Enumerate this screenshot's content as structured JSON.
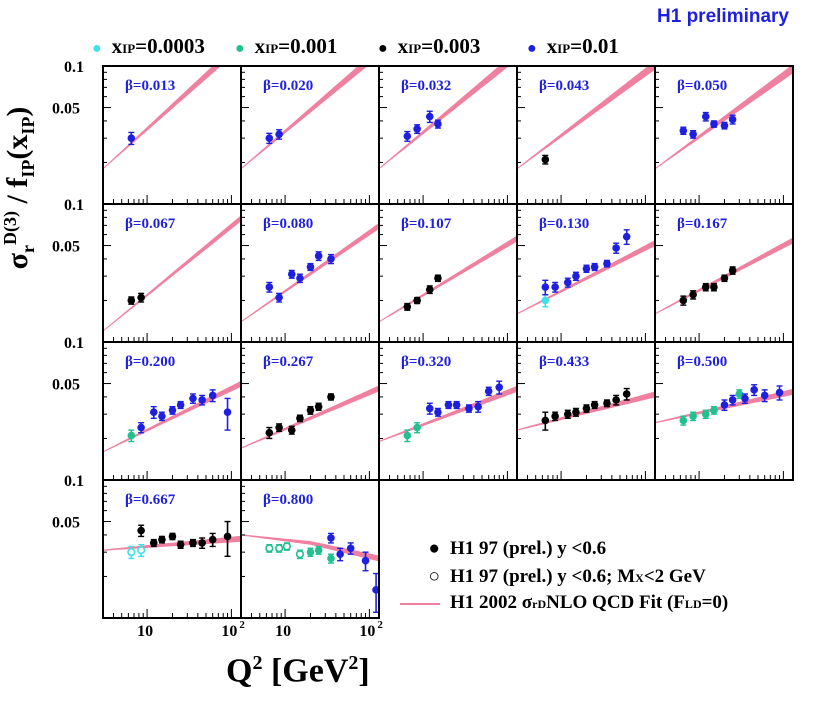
{
  "header": {
    "preliminary": "H1 preliminary"
  },
  "legend_top": [
    {
      "prefix": "x",
      "sub": "IP",
      "value": "=0.0003",
      "color": "#40e0e8"
    },
    {
      "prefix": "x",
      "sub": "IP",
      "value": "=0.001",
      "color": "#20c090"
    },
    {
      "prefix": "x",
      "sub": "IP",
      "value": "=0.003",
      "color": "#000000"
    },
    {
      "prefix": "x",
      "sub": "IP",
      "value": "=0.01",
      "color": "#1f1fe0"
    }
  ],
  "axis": {
    "ylabel_sigma": "σ",
    "ylabel_sup": "D(3)",
    "ylabel_sub": "r",
    "ylabel_rest": " / f",
    "ylabel_sub2": "IP",
    "ylabel_paren": "(x",
    "ylabel_sub3": "IP",
    "ylabel_close": ")",
    "xlabel_q": "Q",
    "xlabel_sup": "2",
    "xlabel_unit": " [GeV",
    "xlabel_unit_sup": "2",
    "xlabel_close": "]",
    "ytick_top": "0.1",
    "ytick_mid": "0.05",
    "xtick_10": "10",
    "xtick_100": "10",
    "xtick_100_sup": "2"
  },
  "legend_bottom": {
    "filled": "H1 97 (prel.) y <0.6",
    "open": "H1 97 (prel.) y <0.6; M",
    "open_sub": "X",
    "open_tail": "<2 GeV",
    "fit_a": "H1 2002  σ",
    "fit_sup": "D",
    "fit_sub": "r",
    "fit_b": "  NLO QCD Fit (F",
    "fit_sup2": "D",
    "fit_sub2": "L",
    "fit_c": "=0)"
  },
  "chart_data": {
    "type": "scatter",
    "title": "H1 preliminary",
    "xlabel": "Q^2 [GeV^2]",
    "ylabel": "sigma_r^D(3) / f_IP(x_IP)",
    "xscale": "log",
    "xlim": [
      3,
      130
    ],
    "ylim": [
      0.01,
      0.1
    ],
    "colors": {
      "0.0003": "#40e0e8",
      "0.001": "#20c090",
      "0.003": "#000000",
      "0.01": "#1f1fe0",
      "fit": "#f080a0"
    },
    "panels": [
      {
        "beta": "β=0.013",
        "fit": [
          [
            3,
            0.018
          ],
          [
            100,
            0.125
          ]
        ],
        "points": [
          {
            "q2": 6.5,
            "y": 0.03,
            "err": 0.003,
            "xip": "0.01"
          }
        ]
      },
      {
        "beta": "β=0.020",
        "fit": [
          [
            3,
            0.018
          ],
          [
            100,
            0.11
          ]
        ],
        "points": [
          {
            "q2": 6.5,
            "y": 0.03,
            "err": 0.0025,
            "xip": "0.01"
          },
          {
            "q2": 8.5,
            "y": 0.032,
            "err": 0.0025,
            "xip": "0.01"
          }
        ]
      },
      {
        "beta": "β=0.032",
        "fit": [
          [
            3,
            0.018
          ],
          [
            100,
            0.105
          ]
        ],
        "points": [
          {
            "q2": 6.5,
            "y": 0.031,
            "err": 0.0025,
            "xip": "0.01"
          },
          {
            "q2": 8.5,
            "y": 0.035,
            "err": 0.0025,
            "xip": "0.01"
          },
          {
            "q2": 12,
            "y": 0.043,
            "err": 0.004,
            "xip": "0.01"
          },
          {
            "q2": 15,
            "y": 0.038,
            "err": 0.0025,
            "xip": "0.01"
          }
        ]
      },
      {
        "beta": "β=0.043",
        "fit": [
          [
            3,
            0.018
          ],
          [
            100,
            0.09
          ]
        ],
        "points": [
          {
            "q2": 6.5,
            "y": 0.021,
            "err": 0.0015,
            "xip": "0.003"
          }
        ]
      },
      {
        "beta": "β=0.050",
        "fit": [
          [
            3,
            0.018
          ],
          [
            100,
            0.085
          ]
        ],
        "points": [
          {
            "q2": 6.5,
            "y": 0.034,
            "err": 0.002,
            "xip": "0.01"
          },
          {
            "q2": 8.5,
            "y": 0.032,
            "err": 0.002,
            "xip": "0.01"
          },
          {
            "q2": 12,
            "y": 0.043,
            "err": 0.003,
            "xip": "0.01"
          },
          {
            "q2": 15,
            "y": 0.038,
            "err": 0.002,
            "xip": "0.01"
          },
          {
            "q2": 20,
            "y": 0.037,
            "err": 0.002,
            "xip": "0.01"
          },
          {
            "q2": 25,
            "y": 0.041,
            "err": 0.003,
            "xip": "0.01"
          }
        ]
      },
      {
        "beta": "β=0.067",
        "fit": [
          [
            3,
            0.012
          ],
          [
            100,
            0.069
          ]
        ],
        "points": [
          {
            "q2": 6.5,
            "y": 0.02,
            "err": 0.0012,
            "xip": "0.003"
          },
          {
            "q2": 8.5,
            "y": 0.021,
            "err": 0.0015,
            "xip": "0.003"
          }
        ]
      },
      {
        "beta": "β=0.080",
        "fit": [
          [
            3,
            0.014
          ],
          [
            100,
            0.062
          ]
        ],
        "points": [
          {
            "q2": 6.5,
            "y": 0.025,
            "err": 0.002,
            "xip": "0.01"
          },
          {
            "q2": 8.5,
            "y": 0.021,
            "err": 0.0015,
            "xip": "0.01"
          },
          {
            "q2": 12,
            "y": 0.031,
            "err": 0.002,
            "xip": "0.01"
          },
          {
            "q2": 15,
            "y": 0.029,
            "err": 0.002,
            "xip": "0.01"
          },
          {
            "q2": 20,
            "y": 0.035,
            "err": 0.002,
            "xip": "0.01"
          },
          {
            "q2": 25,
            "y": 0.042,
            "err": 0.003,
            "xip": "0.01"
          },
          {
            "q2": 35,
            "y": 0.04,
            "err": 0.003,
            "xip": "0.01"
          }
        ]
      },
      {
        "beta": "β=0.107",
        "fit": [
          [
            3,
            0.014
          ],
          [
            100,
            0.051
          ]
        ],
        "points": [
          {
            "q2": 6.5,
            "y": 0.018,
            "err": 0.001,
            "xip": "0.003"
          },
          {
            "q2": 8.5,
            "y": 0.02,
            "err": 0.001,
            "xip": "0.003"
          },
          {
            "q2": 12,
            "y": 0.024,
            "err": 0.0015,
            "xip": "0.003"
          },
          {
            "q2": 15,
            "y": 0.029,
            "err": 0.0015,
            "xip": "0.003"
          }
        ]
      },
      {
        "beta": "β=0.130",
        "fit": [
          [
            3,
            0.016
          ],
          [
            100,
            0.048
          ]
        ],
        "points": [
          {
            "q2": 6.5,
            "y": 0.02,
            "err": 0.002,
            "xip": "0.0003"
          },
          {
            "q2": 6.5,
            "y": 0.025,
            "err": 0.003,
            "xip": "0.01"
          },
          {
            "q2": 8.5,
            "y": 0.025,
            "err": 0.002,
            "xip": "0.01"
          },
          {
            "q2": 12,
            "y": 0.027,
            "err": 0.002,
            "xip": "0.01"
          },
          {
            "q2": 15,
            "y": 0.03,
            "err": 0.002,
            "xip": "0.01"
          },
          {
            "q2": 20,
            "y": 0.034,
            "err": 0.002,
            "xip": "0.01"
          },
          {
            "q2": 25,
            "y": 0.035,
            "err": 0.002,
            "xip": "0.01"
          },
          {
            "q2": 35,
            "y": 0.037,
            "err": 0.002,
            "xip": "0.01"
          },
          {
            "q2": 45,
            "y": 0.048,
            "err": 0.004,
            "xip": "0.01"
          },
          {
            "q2": 60,
            "y": 0.058,
            "err": 0.007,
            "xip": "0.01"
          }
        ]
      },
      {
        "beta": "β=0.167",
        "fit": [
          [
            3,
            0.016
          ],
          [
            100,
            0.05
          ]
        ],
        "points": [
          {
            "q2": 6.5,
            "y": 0.02,
            "err": 0.0015,
            "xip": "0.003"
          },
          {
            "q2": 8.5,
            "y": 0.022,
            "err": 0.0015,
            "xip": "0.003"
          },
          {
            "q2": 12,
            "y": 0.025,
            "err": 0.0015,
            "xip": "0.003"
          },
          {
            "q2": 15,
            "y": 0.025,
            "err": 0.0015,
            "xip": "0.003"
          },
          {
            "q2": 20,
            "y": 0.029,
            "err": 0.0015,
            "xip": "0.003"
          },
          {
            "q2": 25,
            "y": 0.033,
            "err": 0.002,
            "xip": "0.003"
          }
        ]
      },
      {
        "beta": "β=0.200",
        "fit": [
          [
            3,
            0.016
          ],
          [
            100,
            0.046
          ]
        ],
        "points": [
          {
            "q2": 6.5,
            "y": 0.021,
            "err": 0.002,
            "xip": "0.001"
          },
          {
            "q2": 8.5,
            "y": 0.024,
            "err": 0.002,
            "xip": "0.01"
          },
          {
            "q2": 12,
            "y": 0.031,
            "err": 0.003,
            "xip": "0.01"
          },
          {
            "q2": 15,
            "y": 0.029,
            "err": 0.002,
            "xip": "0.01"
          },
          {
            "q2": 20,
            "y": 0.032,
            "err": 0.002,
            "xip": "0.01"
          },
          {
            "q2": 25,
            "y": 0.035,
            "err": 0.002,
            "xip": "0.01"
          },
          {
            "q2": 35,
            "y": 0.039,
            "err": 0.003,
            "xip": "0.01"
          },
          {
            "q2": 45,
            "y": 0.038,
            "err": 0.003,
            "xip": "0.01"
          },
          {
            "q2": 60,
            "y": 0.041,
            "err": 0.004,
            "xip": "0.01"
          },
          {
            "q2": 90,
            "y": 0.031,
            "err": 0.008,
            "xip": "0.01"
          }
        ]
      },
      {
        "beta": "β=0.267",
        "fit": [
          [
            3,
            0.017
          ],
          [
            100,
            0.043
          ]
        ],
        "points": [
          {
            "q2": 6.5,
            "y": 0.022,
            "err": 0.002,
            "xip": "0.003"
          },
          {
            "q2": 8.5,
            "y": 0.024,
            "err": 0.0015,
            "xip": "0.003"
          },
          {
            "q2": 12,
            "y": 0.023,
            "err": 0.0015,
            "xip": "0.003"
          },
          {
            "q2": 15,
            "y": 0.028,
            "err": 0.0015,
            "xip": "0.003"
          },
          {
            "q2": 20,
            "y": 0.032,
            "err": 0.002,
            "xip": "0.003"
          },
          {
            "q2": 25,
            "y": 0.034,
            "err": 0.002,
            "xip": "0.003"
          },
          {
            "q2": 35,
            "y": 0.04,
            "err": 0.002,
            "xip": "0.003"
          }
        ]
      },
      {
        "beta": "β=0.320",
        "fit": [
          [
            3,
            0.019
          ],
          [
            100,
            0.043
          ]
        ],
        "points": [
          {
            "q2": 6.5,
            "y": 0.021,
            "err": 0.002,
            "xip": "0.001"
          },
          {
            "q2": 8.5,
            "y": 0.024,
            "err": 0.002,
            "xip": "0.001"
          },
          {
            "q2": 12,
            "y": 0.033,
            "err": 0.003,
            "xip": "0.01"
          },
          {
            "q2": 15,
            "y": 0.031,
            "err": 0.002,
            "xip": "0.01"
          },
          {
            "q2": 20,
            "y": 0.035,
            "err": 0.002,
            "xip": "0.01"
          },
          {
            "q2": 25,
            "y": 0.035,
            "err": 0.002,
            "xip": "0.01"
          },
          {
            "q2": 35,
            "y": 0.033,
            "err": 0.002,
            "xip": "0.01"
          },
          {
            "q2": 45,
            "y": 0.034,
            "err": 0.003,
            "xip": "0.01"
          },
          {
            "q2": 60,
            "y": 0.044,
            "err": 0.003,
            "xip": "0.01"
          },
          {
            "q2": 80,
            "y": 0.047,
            "err": 0.005,
            "xip": "0.01"
          }
        ]
      },
      {
        "beta": "β=0.433",
        "fit": [
          [
            3,
            0.023
          ],
          [
            100,
            0.04
          ]
        ],
        "points": [
          {
            "q2": 6.5,
            "y": 0.027,
            "err": 0.004,
            "xip": "0.003"
          },
          {
            "q2": 8.5,
            "y": 0.029,
            "err": 0.002,
            "xip": "0.003"
          },
          {
            "q2": 12,
            "y": 0.03,
            "err": 0.002,
            "xip": "0.003"
          },
          {
            "q2": 15,
            "y": 0.031,
            "err": 0.002,
            "xip": "0.003"
          },
          {
            "q2": 20,
            "y": 0.033,
            "err": 0.002,
            "xip": "0.003"
          },
          {
            "q2": 25,
            "y": 0.035,
            "err": 0.002,
            "xip": "0.003"
          },
          {
            "q2": 35,
            "y": 0.036,
            "err": 0.002,
            "xip": "0.003"
          },
          {
            "q2": 45,
            "y": 0.038,
            "err": 0.003,
            "xip": "0.003"
          },
          {
            "q2": 60,
            "y": 0.042,
            "err": 0.004,
            "xip": "0.003"
          }
        ]
      },
      {
        "beta": "β=0.500",
        "fit": [
          [
            3,
            0.026
          ],
          [
            100,
            0.042
          ]
        ],
        "points": [
          {
            "q2": 6.5,
            "y": 0.027,
            "err": 0.002,
            "xip": "0.001"
          },
          {
            "q2": 8.5,
            "y": 0.029,
            "err": 0.002,
            "xip": "0.001"
          },
          {
            "q2": 12,
            "y": 0.03,
            "err": 0.002,
            "xip": "0.001"
          },
          {
            "q2": 15,
            "y": 0.032,
            "err": 0.002,
            "xip": "0.001"
          },
          {
            "q2": 20,
            "y": 0.035,
            "err": 0.003,
            "xip": "0.01"
          },
          {
            "q2": 25,
            "y": 0.038,
            "err": 0.003,
            "xip": "0.01"
          },
          {
            "q2": 30,
            "y": 0.042,
            "err": 0.003,
            "xip": "0.001"
          },
          {
            "q2": 35,
            "y": 0.039,
            "err": 0.003,
            "xip": "0.01"
          },
          {
            "q2": 45,
            "y": 0.045,
            "err": 0.004,
            "xip": "0.01"
          },
          {
            "q2": 60,
            "y": 0.041,
            "err": 0.004,
            "xip": "0.01"
          },
          {
            "q2": 90,
            "y": 0.043,
            "err": 0.005,
            "xip": "0.01"
          }
        ]
      },
      {
        "beta": "β=0.667",
        "fit": [
          [
            3,
            0.031
          ],
          [
            100,
            0.037
          ]
        ],
        "points": [
          {
            "q2": 6.5,
            "y": 0.03,
            "err": 0.003,
            "xip": "0.0003",
            "open": true
          },
          {
            "q2": 8.5,
            "y": 0.031,
            "err": 0.003,
            "xip": "0.0003",
            "open": true
          },
          {
            "q2": 8.5,
            "y": 0.043,
            "err": 0.004,
            "xip": "0.003"
          },
          {
            "q2": 12,
            "y": 0.035,
            "err": 0.002,
            "xip": "0.003"
          },
          {
            "q2": 15,
            "y": 0.037,
            "err": 0.002,
            "xip": "0.003"
          },
          {
            "q2": 20,
            "y": 0.039,
            "err": 0.002,
            "xip": "0.003"
          },
          {
            "q2": 25,
            "y": 0.034,
            "err": 0.002,
            "xip": "0.003"
          },
          {
            "q2": 35,
            "y": 0.035,
            "err": 0.002,
            "xip": "0.003"
          },
          {
            "q2": 45,
            "y": 0.035,
            "err": 0.003,
            "xip": "0.003"
          },
          {
            "q2": 60,
            "y": 0.037,
            "err": 0.004,
            "xip": "0.003"
          },
          {
            "q2": 90,
            "y": 0.039,
            "err": 0.011,
            "xip": "0.003"
          }
        ]
      },
      {
        "beta": "β=0.800",
        "fit": [
          [
            3,
            0.04
          ],
          [
            20,
            0.035
          ],
          [
            130,
            0.027
          ]
        ],
        "points": [
          {
            "q2": 6.5,
            "y": 0.032,
            "err": 0.002,
            "xip": "0.001",
            "open": true
          },
          {
            "q2": 8.5,
            "y": 0.032,
            "err": 0.002,
            "xip": "0.001",
            "open": true
          },
          {
            "q2": 10.5,
            "y": 0.033,
            "err": 0.002,
            "xip": "0.001",
            "open": true
          },
          {
            "q2": 15,
            "y": 0.029,
            "err": 0.002,
            "xip": "0.001",
            "open": true
          },
          {
            "q2": 20,
            "y": 0.03,
            "err": 0.002,
            "xip": "0.001"
          },
          {
            "q2": 25,
            "y": 0.031,
            "err": 0.002,
            "xip": "0.001"
          },
          {
            "q2": 35,
            "y": 0.027,
            "err": 0.002,
            "xip": "0.001"
          },
          {
            "q2": 35,
            "y": 0.038,
            "err": 0.003,
            "xip": "0.01"
          },
          {
            "q2": 45,
            "y": 0.029,
            "err": 0.003,
            "xip": "0.01"
          },
          {
            "q2": 60,
            "y": 0.032,
            "err": 0.003,
            "xip": "0.01"
          },
          {
            "q2": 90,
            "y": 0.026,
            "err": 0.004,
            "xip": "0.01"
          },
          {
            "q2": 120,
            "y": 0.016,
            "err": 0.005,
            "xip": "0.01"
          }
        ]
      }
    ]
  }
}
